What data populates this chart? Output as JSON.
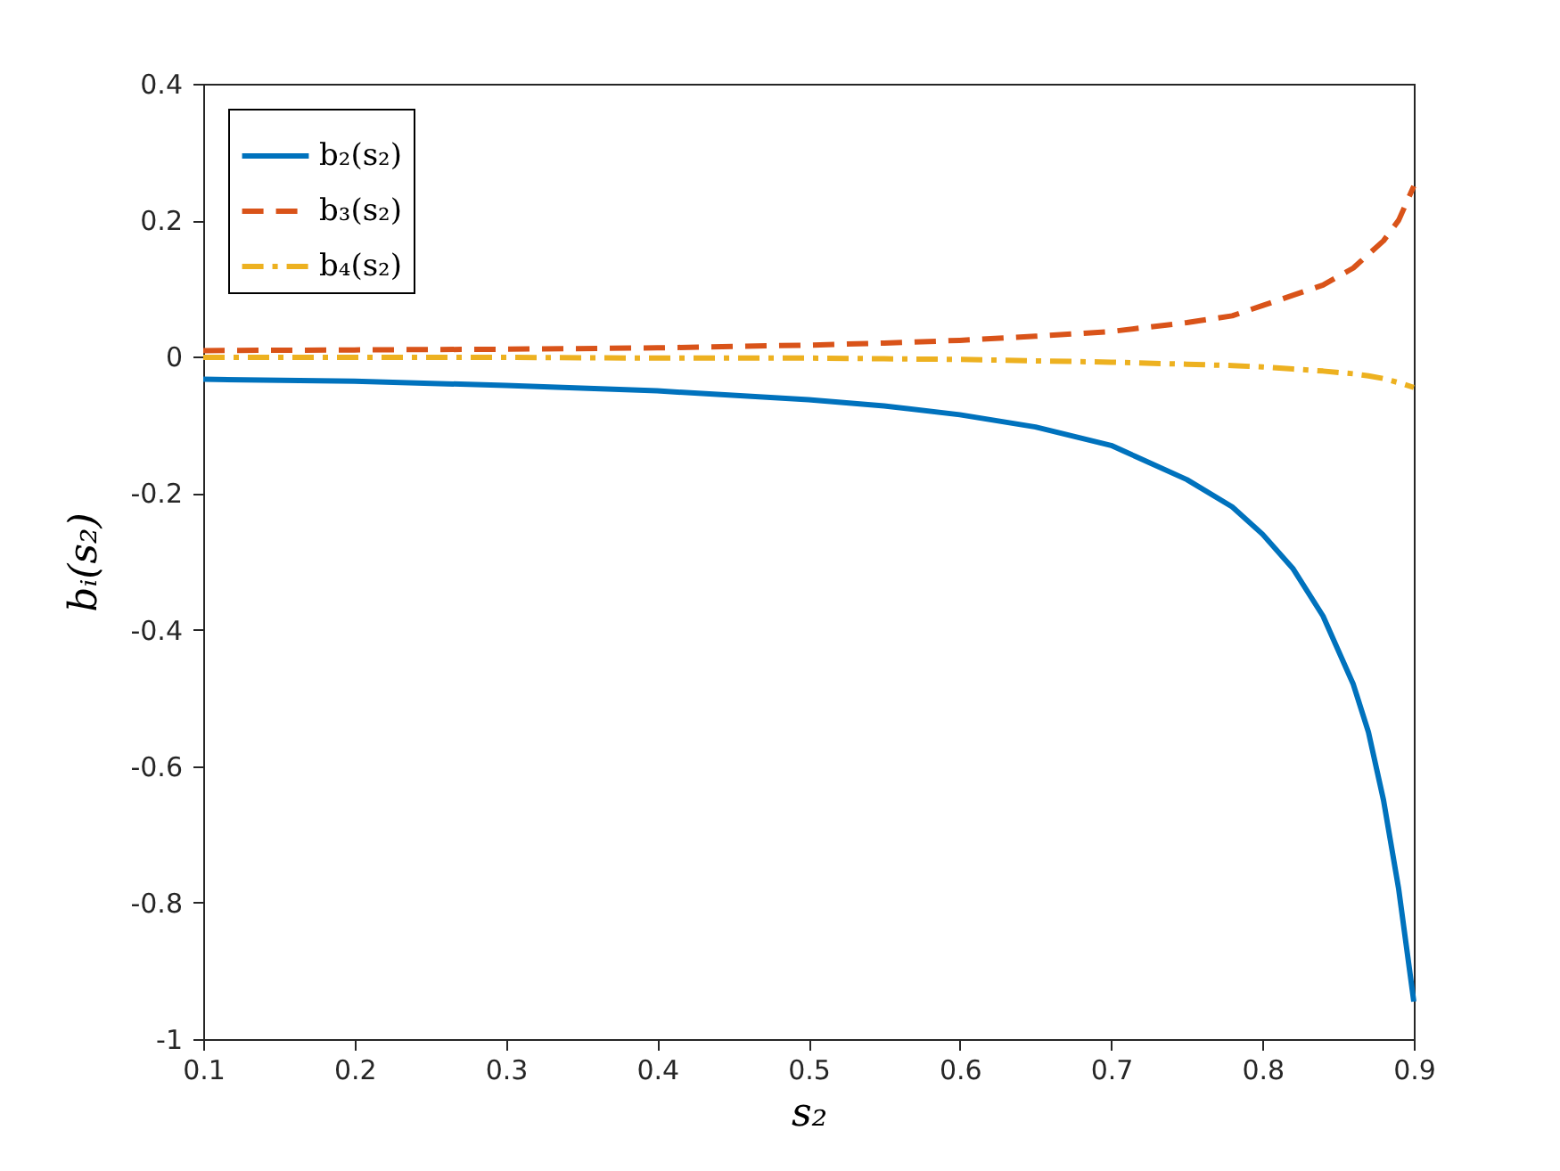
{
  "chart_data": {
    "type": "line",
    "xlabel": "s₂",
    "ylabel": "bᵢ(s₂)",
    "xlim": [
      0.1,
      0.9
    ],
    "ylim": [
      -1,
      0.4
    ],
    "xticks": [
      0.1,
      0.2,
      0.3,
      0.4,
      0.5,
      0.6,
      0.7,
      0.8,
      0.9
    ],
    "yticks": [
      -1,
      -0.8,
      -0.6,
      -0.4,
      -0.2,
      0,
      0.2,
      0.4
    ],
    "legend": "top left",
    "grid": false,
    "marker": "none",
    "x": [
      0.1,
      0.2,
      0.3,
      0.4,
      0.5,
      0.55,
      0.6,
      0.65,
      0.7,
      0.75,
      0.78,
      0.8,
      0.82,
      0.84,
      0.86,
      0.87,
      0.88,
      0.89,
      0.9
    ],
    "series": [
      {
        "name": "b₂(s₂)",
        "color": "#0072bd",
        "line_style": "solid",
        "values": [
          -0.033,
          -0.036,
          -0.042,
          -0.05,
          -0.063,
          -0.072,
          -0.085,
          -0.103,
          -0.13,
          -0.18,
          -0.22,
          -0.26,
          -0.31,
          -0.38,
          -0.48,
          -0.55,
          -0.65,
          -0.78,
          -0.945
        ]
      },
      {
        "name": "b₃(s₂)",
        "color": "#d95319",
        "line_style": "dashed",
        "values": [
          0.009,
          0.01,
          0.011,
          0.013,
          0.017,
          0.02,
          0.024,
          0.03,
          0.037,
          0.05,
          0.06,
          0.075,
          0.09,
          0.105,
          0.13,
          0.15,
          0.17,
          0.2,
          0.25
        ]
      },
      {
        "name": "b₄(s₂)",
        "color": "#edb120",
        "line_style": "dashdot",
        "values": [
          -0.001,
          -0.001,
          -0.001,
          -0.002,
          -0.002,
          -0.003,
          -0.004,
          -0.006,
          -0.008,
          -0.011,
          -0.013,
          -0.015,
          -0.018,
          -0.021,
          -0.025,
          -0.028,
          -0.032,
          -0.038,
          -0.045
        ]
      }
    ]
  }
}
